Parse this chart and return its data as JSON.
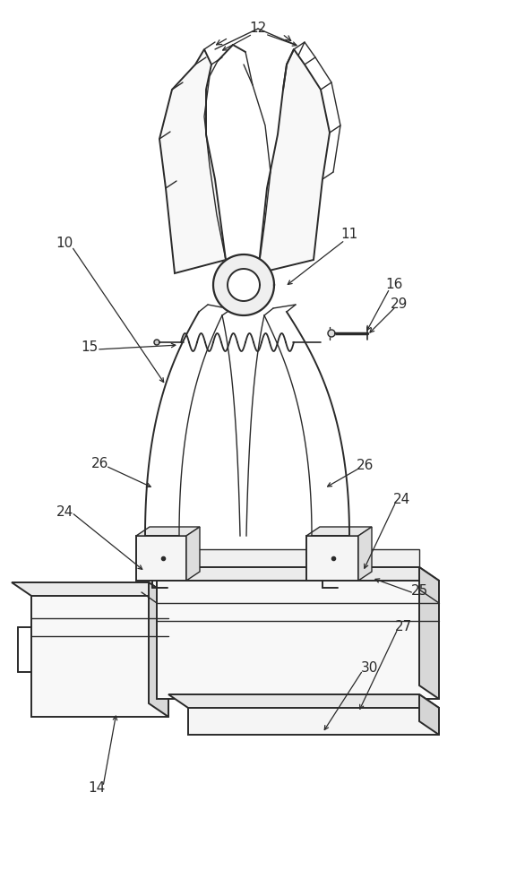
{
  "bg_color": "#ffffff",
  "line_color": "#2a2a2a",
  "figsize": [
    5.76,
    10.0
  ],
  "dpi": 100,
  "labels": [
    [
      "12",
      288,
      32
    ],
    [
      "10",
      72,
      272
    ],
    [
      "11",
      390,
      262
    ],
    [
      "15",
      100,
      388
    ],
    [
      "16",
      440,
      318
    ],
    [
      "29",
      446,
      340
    ],
    [
      "26",
      112,
      518
    ],
    [
      "26",
      408,
      520
    ],
    [
      "24",
      72,
      572
    ],
    [
      "24",
      448,
      558
    ],
    [
      "25",
      468,
      660
    ],
    [
      "27",
      450,
      700
    ],
    [
      "30",
      412,
      745
    ],
    [
      "14",
      108,
      880
    ]
  ]
}
